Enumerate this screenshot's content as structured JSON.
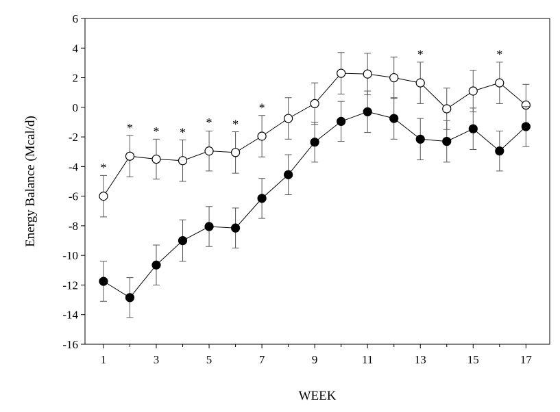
{
  "chart_data": {
    "type": "line",
    "xlabel": "WEEK",
    "ylabel": "Energy Balance (Mcal/d)",
    "xlim": [
      0.3,
      17.9
    ],
    "ylim": [
      -16,
      6
    ],
    "xticks": [
      1,
      3,
      5,
      7,
      9,
      11,
      13,
      15,
      17
    ],
    "yticks": [
      6,
      4,
      2,
      0,
      -2,
      -4,
      -6,
      -8,
      -10,
      -12,
      -14,
      -16
    ],
    "grid": false,
    "legend": "none",
    "x": [
      1,
      2,
      3,
      4,
      5,
      6,
      7,
      8,
      9,
      10,
      11,
      12,
      13,
      14,
      15,
      16,
      17
    ],
    "series": [
      {
        "marker": "open-circle",
        "color": "#000000",
        "values": [
          -6.0,
          -3.3,
          -3.5,
          -3.6,
          -2.95,
          -3.05,
          -1.95,
          -0.75,
          0.25,
          2.3,
          2.25,
          2.0,
          1.65,
          -0.1,
          1.1,
          1.65,
          0.15
        ],
        "error": [
          1.4,
          1.4,
          1.35,
          1.4,
          1.35,
          1.4,
          1.4,
          1.4,
          1.4,
          1.4,
          1.4,
          1.4,
          1.4,
          1.4,
          1.4,
          1.4,
          1.4
        ]
      },
      {
        "marker": "filled-circle",
        "color": "#000000",
        "values": [
          -11.75,
          -12.85,
          -10.65,
          -9.0,
          -8.05,
          -8.15,
          -6.15,
          -4.55,
          -2.35,
          -0.95,
          -0.3,
          -0.75,
          -2.15,
          -2.3,
          -1.45,
          -2.95,
          -1.3
        ],
        "error": [
          1.35,
          1.35,
          1.35,
          1.4,
          1.35,
          1.35,
          1.35,
          1.35,
          1.35,
          1.35,
          1.4,
          1.4,
          1.4,
          1.4,
          1.4,
          1.35,
          1.35
        ]
      }
    ],
    "annotations": [
      {
        "x": 1,
        "y": -3.9,
        "text": "*"
      },
      {
        "x": 2,
        "y": -1.2,
        "text": "*"
      },
      {
        "x": 3,
        "y": -1.45,
        "text": "*"
      },
      {
        "x": 4,
        "y": -1.5,
        "text": "*"
      },
      {
        "x": 5,
        "y": -0.85,
        "text": "*"
      },
      {
        "x": 6,
        "y": -0.95,
        "text": "*"
      },
      {
        "x": 7,
        "y": 0.15,
        "text": "*"
      },
      {
        "x": 13,
        "y": 3.75,
        "text": "*"
      },
      {
        "x": 16,
        "y": 3.75,
        "text": "*"
      }
    ]
  }
}
